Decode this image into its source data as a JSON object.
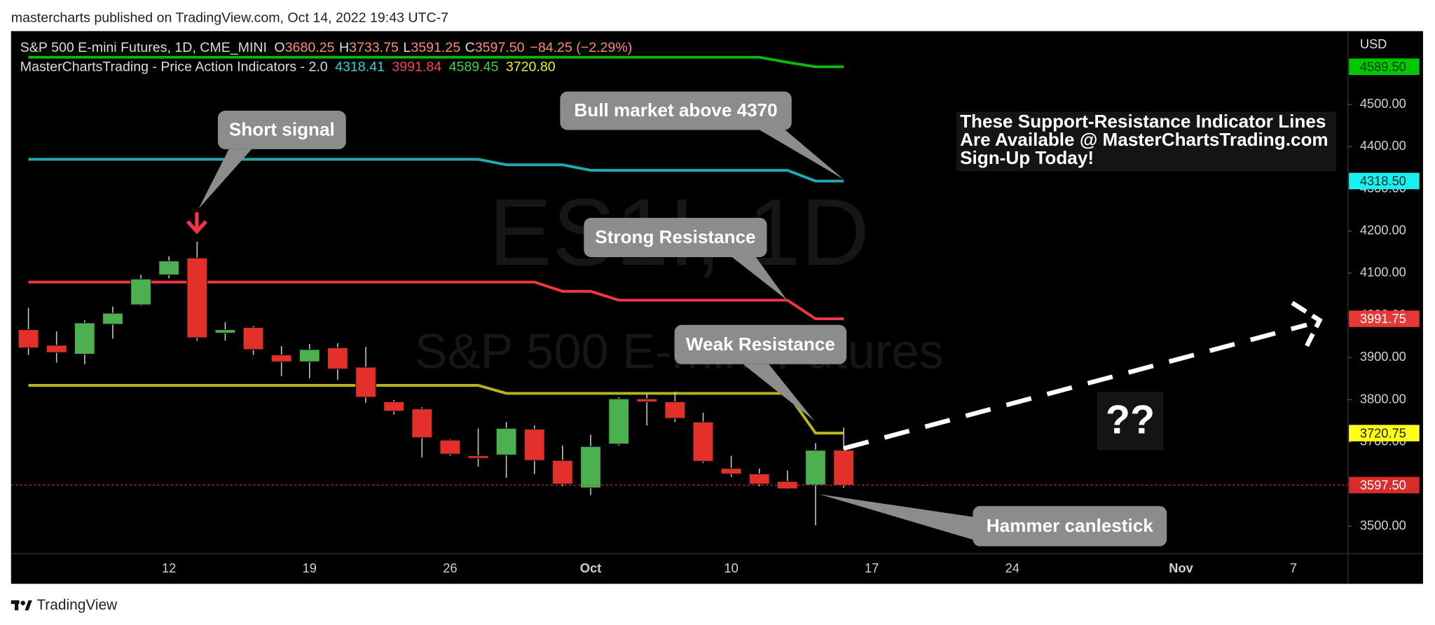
{
  "chart_data": {
    "type": "candlestick",
    "published": "mastercharts published on TradingView.com, Oct 14, 2022 19:43 UTC-7",
    "brand": "TradingView",
    "watermark": [
      "ES1!, 1D",
      "S&P 500 E-mini Futures"
    ],
    "legend": {
      "symbol": "S&P 500 E-mini Futures, 1D, CME_MINI",
      "ohlc": [
        {
          "key": "O",
          "value": "3680.25"
        },
        {
          "key": "H",
          "value": "3733.75"
        },
        {
          "key": "L",
          "value": "3591.25"
        },
        {
          "key": "C",
          "value": "3597.50"
        }
      ],
      "change": "−84.25 (−2.29%)",
      "indicator": "MasterChartsTrading - Price Action Indicators - 2.0",
      "indicator_values": [
        {
          "value": "4318.41",
          "color": "#2fd3da"
        },
        {
          "value": "3991.84",
          "color": "#f2434f"
        },
        {
          "value": "4589.45",
          "color": "#3fd23f"
        },
        {
          "value": "3720.80",
          "color": "#f0f020"
        }
      ]
    },
    "currency": "USD",
    "annotations": [
      "Short signal",
      "Bull market above 4370",
      "Strong Resistance",
      "Weak Resistance",
      "Hammer canlestick"
    ],
    "note": [
      "These Support-Resistance Indicator Lines",
      "Are Available @ MasterChartsTrading.com",
      "Sign-Up Today!"
    ],
    "question": "??",
    "categories": [
      null,
      null,
      null,
      null,
      null,
      "12",
      null,
      null,
      null,
      null,
      "19",
      null,
      null,
      null,
      null,
      "26",
      null,
      null,
      null,
      null,
      "Oct",
      null,
      null,
      null,
      null,
      "10",
      null,
      null,
      null,
      null,
      "17",
      null,
      null,
      null,
      null,
      "24",
      null,
      null,
      null,
      null,
      null,
      "Nov",
      null,
      null,
      null,
      "7",
      null,
      null
    ],
    "bold_categories": [
      "Oct",
      "Nov"
    ],
    "open": [
      3966,
      3929,
      3908,
      3979,
      4025,
      4096,
      4136,
      3958,
      3971,
      3906,
      3890,
      3923,
      3877,
      3795,
      3778,
      3704,
      3667,
      3669,
      3730,
      3656,
      3591,
      3695,
      3802,
      3795,
      3747,
      3637,
      3624,
      3606,
      3598,
      3680.25,
      null,
      null,
      null,
      null,
      null,
      null,
      null,
      null,
      null,
      null,
      null,
      null,
      null,
      null,
      null,
      null,
      null,
      null
    ],
    "high": [
      4018,
      3962,
      3988,
      4021,
      4096,
      4140,
      4175,
      3984,
      3975,
      3927,
      3932,
      3934,
      3925,
      3799,
      3782,
      3706,
      3732,
      3747,
      3739,
      3691,
      3717,
      3806,
      3815,
      3819,
      3769,
      3667,
      3637,
      3632,
      3697,
      3733.75,
      null,
      null,
      null,
      null,
      null,
      null,
      null,
      null,
      null,
      null,
      null,
      null,
      null,
      null,
      null,
      null,
      null,
      null
    ],
    "low": [
      3906,
      3888,
      3884,
      3945,
      4023,
      4088,
      3940,
      3940,
      3906,
      3856,
      3851,
      3847,
      3793,
      3765,
      3663,
      3667,
      3641,
      3615,
      3624,
      3595,
      3574,
      3691,
      3739,
      3747,
      3650,
      3617,
      3595,
      3587,
      3502,
      3591.25,
      null,
      null,
      null,
      null,
      null,
      null,
      null,
      null,
      null,
      null,
      null,
      null,
      null,
      null,
      null,
      null,
      null,
      null
    ],
    "close": [
      3923,
      3912,
      3982,
      4005,
      4086,
      4129,
      3947,
      3966,
      3919,
      3890,
      3919,
      3873,
      3806,
      3773,
      3710,
      3671,
      3661,
      3732,
      3656,
      3600,
      3689,
      3802,
      3795,
      3756,
      3654,
      3624,
      3600,
      3589,
      3680,
      3597.5,
      null,
      null,
      null,
      null,
      null,
      null,
      null,
      null,
      null,
      null,
      null,
      null,
      null,
      null,
      null,
      null,
      null,
      null
    ],
    "up_color": "#4caf50",
    "down_color": "#e3302a",
    "series": [
      {
        "color": "#0fb80f",
        "values": [
          4612,
          4612,
          4612,
          4612,
          4612,
          4612,
          4612,
          4612,
          4612,
          4612,
          4612,
          4612,
          4612,
          4612,
          4612,
          4612,
          4612,
          4612,
          4612,
          4612,
          4612,
          4612,
          4612,
          4612,
          4612,
          4612,
          4612,
          4600,
          4589.45,
          4589.45,
          null,
          null,
          null,
          null,
          null,
          null,
          null,
          null,
          null,
          null,
          null,
          null,
          null,
          null,
          null,
          null,
          null,
          null
        ]
      },
      {
        "color": "#1fa8b0",
        "values": [
          4370,
          4370,
          4370,
          4370,
          4370,
          4370,
          4370,
          4370,
          4370,
          4370,
          4370,
          4370,
          4370,
          4370,
          4370,
          4370,
          4370,
          4357,
          4357,
          4357,
          4344,
          4344,
          4344,
          4344,
          4344,
          4344,
          4344,
          4344,
          4318.41,
          4318.41,
          null,
          null,
          null,
          null,
          null,
          null,
          null,
          null,
          null,
          null,
          null,
          null,
          null,
          null,
          null,
          null,
          null,
          null
        ]
      },
      {
        "color": "#f23645",
        "values": [
          4079,
          4079,
          4079,
          4079,
          4079,
          4079,
          4079,
          4079,
          4079,
          4079,
          4079,
          4079,
          4079,
          4079,
          4079,
          4079,
          4079,
          4079,
          4079,
          4057,
          4057,
          4036,
          4036,
          4036,
          4036,
          4036,
          4036,
          4036,
          3991.84,
          3991.84,
          null,
          null,
          null,
          null,
          null,
          null,
          null,
          null,
          null,
          null,
          null,
          null,
          null,
          null,
          null,
          null,
          null,
          null
        ]
      },
      {
        "color": "#b4b41c",
        "values": [
          3834,
          3834,
          3834,
          3834,
          3834,
          3834,
          3834,
          3834,
          3834,
          3834,
          3834,
          3834,
          3834,
          3834,
          3834,
          3834,
          3834,
          3815,
          3815,
          3815,
          3815,
          3815,
          3815,
          3815,
          3815,
          3815,
          3815,
          3815,
          3720.8,
          3720.8,
          null,
          null,
          null,
          null,
          null,
          null,
          null,
          null,
          null,
          null,
          null,
          null,
          null,
          null,
          null,
          null,
          null,
          null
        ]
      }
    ],
    "ylim": [
      3435,
      4674
    ],
    "yticks": [
      {
        "value": 3500,
        "label": "3500.00"
      },
      {
        "value": 3600,
        "label": "3600.00"
      },
      {
        "value": 3700,
        "label": "3700.00"
      },
      {
        "value": 3800,
        "label": "3800.00"
      },
      {
        "value": 3900,
        "label": "3900.00"
      },
      {
        "value": 4000,
        "label": "4000.00"
      },
      {
        "value": 4100,
        "label": "4100.00"
      },
      {
        "value": 4200,
        "label": "4200.00"
      },
      {
        "value": 4300,
        "label": "4300.00"
      },
      {
        "value": 4400,
        "label": "4400.00"
      },
      {
        "value": 4500,
        "label": "4500.00"
      }
    ],
    "grid": false,
    "price_labels": [
      {
        "value": 4589.5,
        "label": "4589.50",
        "color": "#00c800",
        "text_color": "#0a3a0a"
      },
      {
        "value": 4318.5,
        "label": "4318.50",
        "color": "#19f0f0",
        "text_color": "#0a2a2a"
      },
      {
        "value": 3991.75,
        "label": "3991.75",
        "color": "#e53935",
        "text_color": "#ffffff"
      },
      {
        "value": 3720.75,
        "label": "3720.75",
        "color": "#ffff1a",
        "text_color": "#202000"
      },
      {
        "value": 3597.5,
        "label": "3597.50",
        "color": "#d92b2b",
        "text_color": "#ffffff",
        "line": true
      }
    ]
  }
}
